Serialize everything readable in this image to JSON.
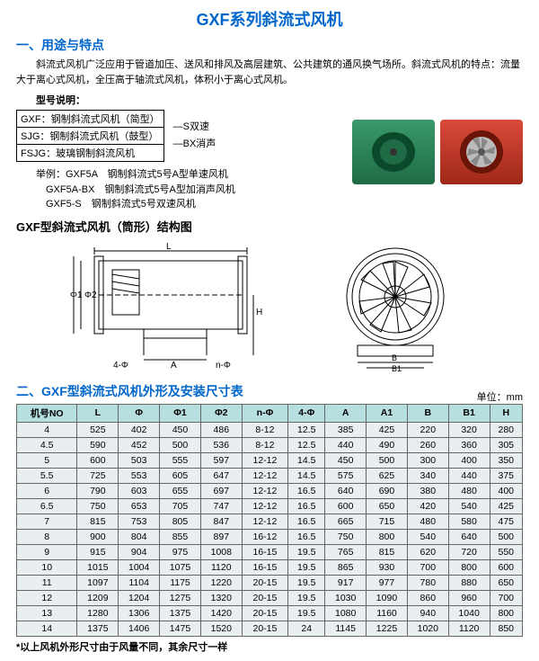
{
  "title": "GXF系列斜流式风机",
  "section1": {
    "heading": "一、用途与特点",
    "intro": "斜流式风机广泛应用于管道加压、送风和排风及高层建筑、公共建筑的通风换气场所。斜流式风机的特点：流量大于离心式风机，全压高于轴流式风机，体积小于离心式风机。",
    "model_expl_title": "型号说明：",
    "model_rows": [
      [
        "GXF：钢制斜流式风机（简型）",
        ""
      ],
      [
        "SJG：钢制斜流式风机（鼓型）",
        "—S双速"
      ],
      [
        "FSJG：玻璃钢制斜流风机",
        "—BX消声"
      ]
    ],
    "examples_label": "举例：",
    "examples": [
      "GXF5A　钢制斜流式5号A型单速风机",
      "GXF5A-BX　钢制斜流式5号A型加消声风机",
      "GXF5-S　钢制斜流式5号双速风机"
    ],
    "struct_title": "GXF型斜流式风机（筒形）结构图"
  },
  "diagram_labels": {
    "L": "L",
    "A": "A",
    "H": "H",
    "phi1": "Φ1",
    "phi2": "Φ2",
    "fourphi": "4-Φ",
    "nphi": "n-Φ",
    "B": "B",
    "B1": "B1"
  },
  "section2": {
    "heading": "二、GXF型斜流式风机外形及安装尺寸表",
    "unit": "单位：mm",
    "columns": [
      "机号NO",
      "L",
      "Φ",
      "Φ1",
      "Φ2",
      "n-Φ",
      "4-Φ",
      "A",
      "A1",
      "B",
      "B1",
      "H"
    ],
    "rows": [
      [
        "4",
        "525",
        "402",
        "450",
        "486",
        "8-12",
        "12.5",
        "385",
        "425",
        "220",
        "320",
        "280"
      ],
      [
        "4.5",
        "590",
        "452",
        "500",
        "536",
        "8-12",
        "12.5",
        "440",
        "490",
        "260",
        "360",
        "305"
      ],
      [
        "5",
        "600",
        "503",
        "555",
        "597",
        "12-12",
        "14.5",
        "450",
        "500",
        "300",
        "400",
        "350"
      ],
      [
        "5.5",
        "725",
        "553",
        "605",
        "647",
        "12-12",
        "14.5",
        "575",
        "625",
        "340",
        "440",
        "375"
      ],
      [
        "6",
        "790",
        "603",
        "655",
        "697",
        "12-12",
        "16.5",
        "640",
        "690",
        "380",
        "480",
        "400"
      ],
      [
        "6.5",
        "750",
        "653",
        "705",
        "747",
        "12-12",
        "16.5",
        "600",
        "650",
        "420",
        "540",
        "425"
      ],
      [
        "7",
        "815",
        "753",
        "805",
        "847",
        "12-12",
        "16.5",
        "665",
        "715",
        "480",
        "580",
        "475"
      ],
      [
        "8",
        "900",
        "804",
        "855",
        "897",
        "16-12",
        "16.5",
        "750",
        "800",
        "540",
        "640",
        "500"
      ],
      [
        "9",
        "915",
        "904",
        "975",
        "1008",
        "16-15",
        "19.5",
        "765",
        "815",
        "620",
        "720",
        "550"
      ],
      [
        "10",
        "1015",
        "1004",
        "1075",
        "1120",
        "16-15",
        "19.5",
        "865",
        "930",
        "700",
        "800",
        "600"
      ],
      [
        "11",
        "1097",
        "1104",
        "1175",
        "1220",
        "20-15",
        "19.5",
        "917",
        "977",
        "780",
        "880",
        "650"
      ],
      [
        "12",
        "1209",
        "1204",
        "1275",
        "1320",
        "20-15",
        "19.5",
        "1030",
        "1090",
        "860",
        "960",
        "700"
      ],
      [
        "13",
        "1280",
        "1306",
        "1375",
        "1420",
        "20-15",
        "19.5",
        "1080",
        "1160",
        "940",
        "1040",
        "800"
      ],
      [
        "14",
        "1375",
        "1406",
        "1475",
        "1520",
        "20-15",
        "24",
        "1145",
        "1225",
        "1020",
        "1120",
        "850"
      ]
    ],
    "note": "*以上风机外形尺寸由于风量不同，其余尺寸一样"
  }
}
